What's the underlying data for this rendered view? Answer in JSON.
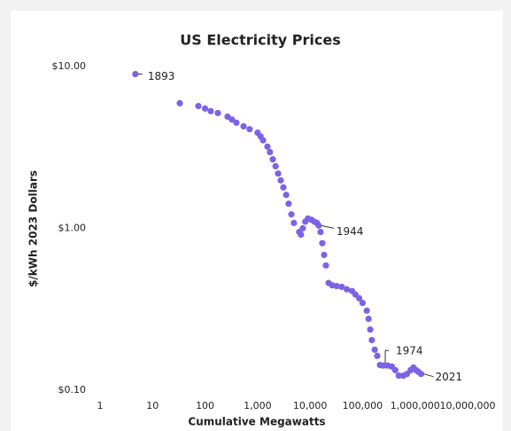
{
  "chart_data": {
    "type": "scatter",
    "title": "US Electricity Prices",
    "xlabel": "Cumulative Megawatts",
    "ylabel": "$/kWh 2023 Dollars",
    "color": "#7c63e6",
    "xscale": "log",
    "yscale": "log",
    "xlim": [
      1,
      10000000
    ],
    "ylim": [
      0.1,
      10
    ],
    "xticks": [
      1,
      10,
      100,
      {
        "value": 1000,
        "label": "1,000"
      },
      {
        "value": 10000,
        "label": "10,000"
      },
      {
        "value": 100000,
        "label": "100,000"
      },
      {
        "value": 1000000,
        "label": "1,000,000"
      },
      {
        "value": 10000000,
        "label": "10,000,000"
      }
    ],
    "yticks": [
      {
        "value": 0.1,
        "label": "$0.10"
      },
      {
        "value": 1,
        "label": "$1.00"
      },
      {
        "value": 10,
        "label": "$10.00"
      }
    ],
    "x": [
      4.7,
      33,
      74.5,
      100,
      128,
      175,
      268,
      325,
      395,
      540,
      705,
      1000,
      1140,
      1270,
      1540,
      1720,
      1950,
      2200,
      2460,
      2760,
      3100,
      3500,
      3900,
      4400,
      4920,
      6200,
      6700,
      7250,
      8100,
      9100,
      10600,
      12000,
      13500,
      14600,
      15800,
      17100,
      18500,
      20000,
      22500,
      26300,
      32000,
      40000,
      50000,
      63000,
      73000,
      86000,
      100000,
      120000,
      130000,
      140000,
      150000,
      170000,
      190000,
      215000,
      250000,
      300000,
      360000,
      420000,
      490000,
      600000,
      700000,
      820000,
      930000,
      1050000,
      1150000,
      1300000
    ],
    "y": [
      8.98,
      5.93,
      5.7,
      5.5,
      5.3,
      5.16,
      4.9,
      4.7,
      4.5,
      4.27,
      4.1,
      3.9,
      3.7,
      3.5,
      3.2,
      2.96,
      2.67,
      2.42,
      2.18,
      1.98,
      1.79,
      1.61,
      1.42,
      1.22,
      1.08,
      0.95,
      0.915,
      1.0,
      1.1,
      1.15,
      1.13,
      1.1,
      1.08,
      1.04,
      0.95,
      0.81,
      0.685,
      0.59,
      0.46,
      0.445,
      0.44,
      0.435,
      0.42,
      0.41,
      0.39,
      0.37,
      0.346,
      0.31,
      0.276,
      0.237,
      0.204,
      0.178,
      0.163,
      0.143,
      0.142,
      0.142,
      0.14,
      0.133,
      0.123,
      0.123,
      0.126,
      0.133,
      0.138,
      0.133,
      0.13,
      0.126
    ],
    "annotations": [
      {
        "text": "1893",
        "x": 4.7,
        "y": 8.98
      },
      {
        "text": "1944",
        "x": 14600,
        "y": 1.04
      },
      {
        "text": "1974",
        "x": 250000,
        "y": 0.142
      },
      {
        "text": "2021",
        "x": 1300000,
        "y": 0.126
      }
    ]
  }
}
